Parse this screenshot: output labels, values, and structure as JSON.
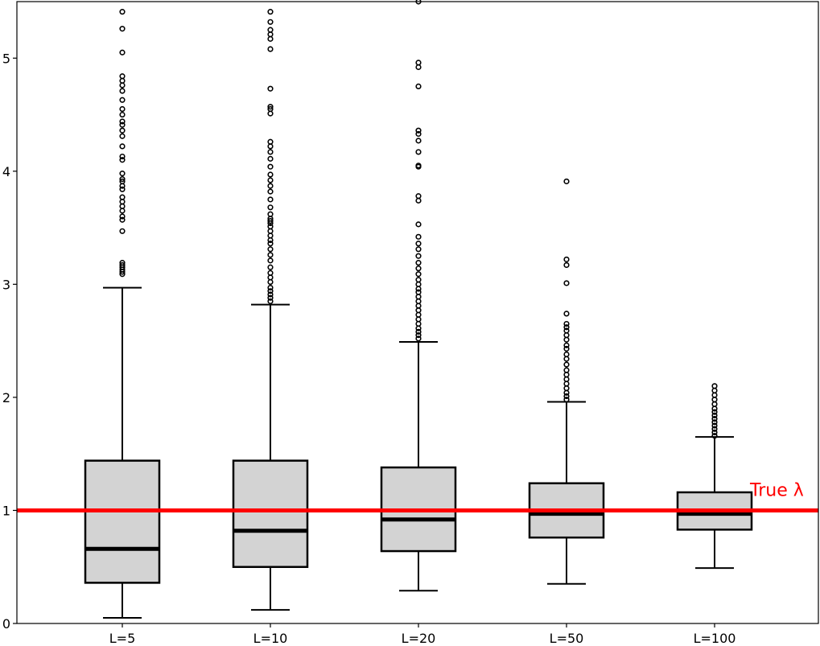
{
  "chart_data": {
    "type": "boxplot",
    "title": "",
    "xlabel": "",
    "ylabel": "",
    "ylim": [
      0,
      5.5
    ],
    "yticks": [
      0,
      1,
      2,
      3,
      4,
      5
    ],
    "ytick_labels": [
      "0",
      "1",
      "2",
      "3",
      "4",
      "5"
    ],
    "grid": false,
    "categories": [
      "L=5",
      "L=10",
      "L=20",
      "L=50",
      "L=100"
    ],
    "boxes": [
      {
        "label": "L=5",
        "whisker_low": 0.05,
        "q1": 0.36,
        "median": 0.66,
        "q3": 1.44,
        "whisker_high": 2.97,
        "outliers": [
          3.09,
          3.11,
          3.13,
          3.15,
          3.17,
          3.19,
          3.47,
          3.57,
          3.6,
          3.65,
          3.69,
          3.73,
          3.77,
          3.84,
          3.87,
          3.91,
          3.93,
          3.98,
          4.1,
          4.13,
          4.22,
          4.31,
          4.36,
          4.41,
          4.44,
          4.5,
          4.55,
          4.63,
          4.71,
          4.76,
          4.8,
          4.84,
          5.05,
          5.26,
          5.41
        ]
      },
      {
        "label": "L=10",
        "whisker_low": 0.12,
        "q1": 0.5,
        "median": 0.82,
        "q3": 1.44,
        "whisker_high": 2.82,
        "outliers": [
          2.85,
          2.88,
          2.91,
          2.94,
          2.97,
          3.02,
          3.06,
          3.1,
          3.15,
          3.21,
          3.26,
          3.31,
          3.36,
          3.39,
          3.43,
          3.47,
          3.51,
          3.54,
          3.56,
          3.58,
          3.62,
          3.68,
          3.75,
          3.82,
          3.87,
          3.92,
          3.97,
          4.04,
          4.11,
          4.17,
          4.22,
          4.26,
          4.51,
          4.55,
          4.57,
          4.73,
          5.08,
          5.17,
          5.21,
          5.25,
          5.32,
          5.41
        ]
      },
      {
        "label": "L=20",
        "whisker_low": 0.29,
        "q1": 0.64,
        "median": 0.92,
        "q3": 1.38,
        "whisker_high": 2.49,
        "outliers": [
          2.52,
          2.55,
          2.58,
          2.61,
          2.65,
          2.69,
          2.73,
          2.77,
          2.81,
          2.85,
          2.89,
          2.93,
          2.96,
          3.0,
          3.04,
          3.09,
          3.14,
          3.19,
          3.25,
          3.31,
          3.36,
          3.42,
          3.53,
          3.74,
          3.78,
          4.04,
          4.05,
          4.17,
          4.27,
          4.33,
          4.36,
          4.75,
          4.92,
          4.96,
          5.5
        ]
      },
      {
        "label": "L=50",
        "whisker_low": 0.35,
        "q1": 0.76,
        "median": 0.97,
        "q3": 1.24,
        "whisker_high": 1.96,
        "outliers": [
          1.98,
          2.01,
          2.04,
          2.08,
          2.12,
          2.16,
          2.2,
          2.24,
          2.29,
          2.34,
          2.38,
          2.43,
          2.46,
          2.51,
          2.55,
          2.59,
          2.62,
          2.65,
          2.74,
          3.01,
          3.17,
          3.22,
          3.91
        ]
      },
      {
        "label": "L=100",
        "whisker_low": 0.49,
        "q1": 0.83,
        "median": 0.97,
        "q3": 1.16,
        "whisker_high": 1.65,
        "outliers": [
          1.66,
          1.69,
          1.72,
          1.75,
          1.78,
          1.81,
          1.84,
          1.87,
          1.9,
          1.94,
          1.98,
          2.02,
          2.06,
          2.1
        ]
      }
    ],
    "reference_line": {
      "value": 1.0,
      "label": "True λ",
      "color": "#ff0000"
    },
    "colors": {
      "box_fill": "#d3d3d3",
      "box_edge": "#000000",
      "median": "#000000",
      "reference": "#ff0000"
    }
  }
}
